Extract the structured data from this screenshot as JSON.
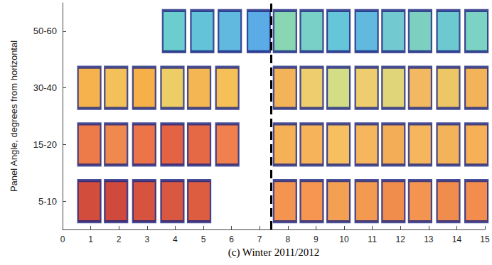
{
  "chart_data": {
    "type": "scatter",
    "marker": "rect",
    "xlabel": "(c) Winter 2011/2012",
    "ylabel": "Panel Angle, degrees from horizontal",
    "categories": [
      "5-10",
      "15-20",
      "30-40",
      "50-60"
    ],
    "xlim": [
      0,
      15
    ],
    "xticks": [
      0,
      1,
      2,
      3,
      4,
      5,
      6,
      7,
      8,
      9,
      10,
      11,
      12,
      13,
      14,
      15
    ],
    "grid": false,
    "annotations": [
      {
        "x": 7.4,
        "line_style": "dashed"
      }
    ],
    "series": [
      {
        "category": "50-60",
        "x": [
          3.96,
          4.96,
          5.94,
          6.97,
          7.9,
          8.85,
          9.8,
          10.8,
          11.75,
          12.7,
          13.7,
          14.7
        ],
        "colors": [
          "#46c0c0",
          "#3cb4d0",
          "#3aa8d8",
          "#3296e0",
          "#6ccca0",
          "#58c4b8",
          "#40b8d0",
          "#3aa8d8",
          "#50bcc4",
          "#5cc4b0",
          "#48bcc4",
          "#5cc8b4"
        ]
      },
      {
        "category": "30-40",
        "x": [
          0.95,
          1.9,
          2.9,
          3.9,
          4.85,
          5.85,
          7.9,
          8.85,
          9.8,
          10.8,
          11.75,
          12.7,
          13.7,
          14.7
        ],
        "colors": [
          "#f4a020",
          "#f0b030",
          "#f49c1c",
          "#e8c040",
          "#f0a428",
          "#f4b030",
          "#f0a030",
          "#e8c048",
          "#c8d468",
          "#e8c048",
          "#d8cc58",
          "#f0a838",
          "#e8b840",
          "#f0a030"
        ]
      },
      {
        "category": "15-20",
        "x": [
          0.95,
          1.9,
          2.9,
          3.9,
          4.85,
          5.85,
          7.9,
          8.85,
          9.8,
          10.8,
          11.75,
          12.7,
          13.7,
          14.7
        ],
        "colors": [
          "#e85a1c",
          "#ec6c20",
          "#e8501c",
          "#dc3c14",
          "#e04418",
          "#ec6020",
          "#f49c2c",
          "#f4a030",
          "#f4b038",
          "#f4a434",
          "#f0982c",
          "#f4a434",
          "#f0a030",
          "#f49c2c"
        ]
      },
      {
        "category": "5-10",
        "x": [
          0.95,
          1.9,
          2.9,
          3.9,
          4.85,
          7.9,
          8.85,
          9.8,
          10.8,
          11.75,
          12.7,
          13.7,
          14.7
        ],
        "colors": [
          "#c8200c",
          "#c41c0c",
          "#cc280e",
          "#d03010",
          "#d43412",
          "#f07a24",
          "#f47c24",
          "#f08828",
          "#f08024",
          "#ec7020",
          "#f07a24",
          "#ec7020",
          "#f07020"
        ]
      }
    ]
  }
}
